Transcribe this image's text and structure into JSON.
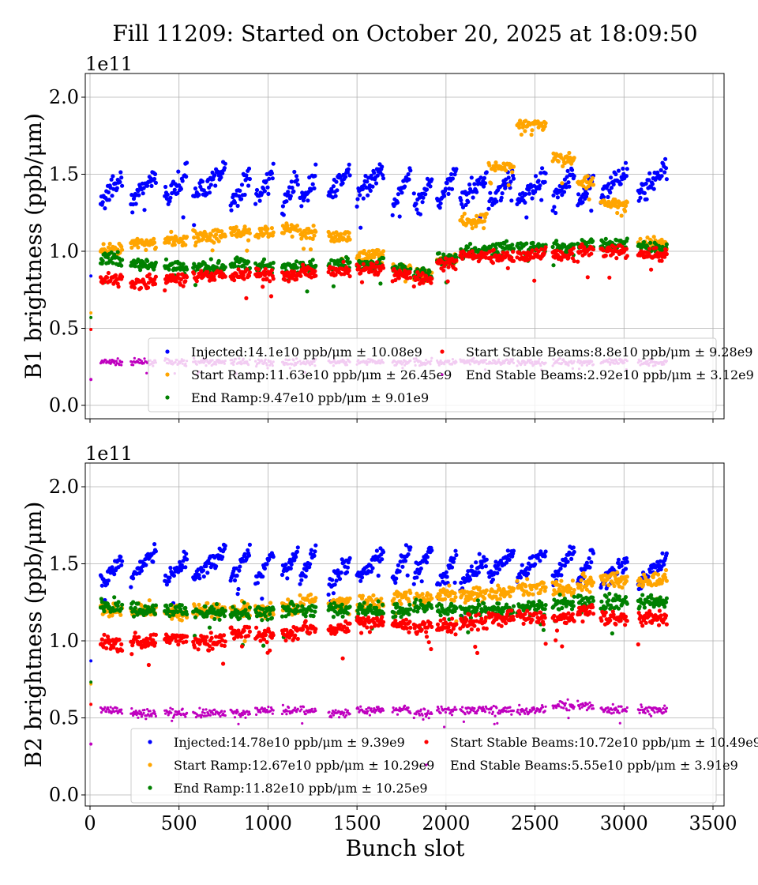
{
  "title": "Fill 11209: Started on October 20, 2025 at 18:09:50",
  "chart_data": [
    {
      "type": "scatter",
      "ylabel": "B1 brightness (ppb/μm)",
      "offset_text": "1e11",
      "xlim": [
        0,
        3500
      ],
      "ylim": [
        -0.05,
        2.15
      ],
      "xticks": [
        "0",
        "500",
        "1000",
        "1500",
        "2000",
        "2500",
        "3000",
        "3500"
      ],
      "yticks": [
        "0.0",
        "0.5",
        "1.0",
        "1.5",
        "2.0"
      ],
      "grid": true,
      "legend_placement": "lower-right",
      "trains": [
        [
          60,
          180
        ],
        [
          230,
          370
        ],
        [
          420,
          545
        ],
        [
          580,
          760
        ],
        [
          790,
          900
        ],
        [
          930,
          1030
        ],
        [
          1080,
          1170
        ],
        [
          1180,
          1270
        ],
        [
          1340,
          1460
        ],
        [
          1500,
          1650
        ],
        [
          1700,
          1800
        ],
        [
          1820,
          1920
        ],
        [
          1950,
          2060
        ],
        [
          2080,
          2230
        ],
        [
          2240,
          2380
        ],
        [
          2400,
          2560
        ],
        [
          2600,
          2720
        ],
        [
          2740,
          2830
        ],
        [
          2870,
          3020
        ],
        [
          3080,
          3240
        ]
      ],
      "series": [
        {
          "name": "End Stable Beams",
          "legend": "End Stable Beams:2.92e10 ppb/μm ± 3.12e9",
          "color": "#bf00bf",
          "train_means": [
            0.28,
            0.28,
            0.28,
            0.28,
            0.28,
            0.28,
            0.28,
            0.28,
            0.28,
            0.28,
            0.28,
            0.28,
            0.28,
            0.28,
            0.28,
            0.28,
            0.28,
            0.28,
            0.28,
            0.28
          ],
          "spread": 0.03
        },
        {
          "name": "Injected",
          "legend": "Injected:14.1e10 ppb/μm ± 10.08e9",
          "color": "#0000ff",
          "train_means": [
            1.4,
            1.42,
            1.42,
            1.45,
            1.4,
            1.42,
            1.38,
            1.4,
            1.45,
            1.45,
            1.4,
            1.38,
            1.42,
            1.4,
            1.4,
            1.4,
            1.42,
            1.4,
            1.45,
            1.45
          ],
          "spread": 0.1
        },
        {
          "name": "Start Ramp",
          "legend": "Start Ramp:11.63e10 ppb/μm ± 26.45e9",
          "color": "#ffa500",
          "train_means": [
            1.0,
            1.05,
            1.08,
            1.1,
            1.12,
            1.12,
            1.15,
            1.12,
            1.1,
            0.98,
            0.88,
            0.85,
            0.95,
            1.2,
            1.55,
            1.82,
            1.6,
            1.45,
            1.3,
            1.05
          ],
          "spread": 0.06
        },
        {
          "name": "End Ramp",
          "legend": "End Ramp:9.47e10 ppb/μm ± 9.01e9",
          "color": "#008000",
          "train_means": [
            0.95,
            0.92,
            0.9,
            0.9,
            0.92,
            0.9,
            0.9,
            0.9,
            0.92,
            0.92,
            0.88,
            0.85,
            0.95,
            1.0,
            1.02,
            1.02,
            1.02,
            1.05,
            1.05,
            1.02
          ],
          "spread": 0.06
        },
        {
          "name": "Start Stable Beams",
          "legend": "Start Stable Beams:8.8e10 ppb/μm ± 9.28e9",
          "color": "#ff0000",
          "train_means": [
            0.82,
            0.8,
            0.82,
            0.85,
            0.85,
            0.85,
            0.85,
            0.87,
            0.88,
            0.88,
            0.85,
            0.82,
            0.92,
            0.97,
            0.97,
            0.98,
            0.98,
            1.0,
            1.0,
            0.98
          ],
          "spread": 0.06
        }
      ]
    },
    {
      "type": "scatter",
      "ylabel": "B2 brightness (ppb/μm)",
      "xlabel": "Bunch slot",
      "offset_text": "1e11",
      "xlim": [
        0,
        3500
      ],
      "ylim": [
        -0.05,
        2.15
      ],
      "xticks": [
        "0",
        "500",
        "1000",
        "1500",
        "2000",
        "2500",
        "3000",
        "3500"
      ],
      "yticks": [
        "0.0",
        "0.5",
        "1.0",
        "1.5",
        "2.0"
      ],
      "grid": true,
      "legend_placement": "lower-right",
      "trains": [
        [
          60,
          180
        ],
        [
          230,
          370
        ],
        [
          420,
          545
        ],
        [
          580,
          760
        ],
        [
          790,
          900
        ],
        [
          930,
          1030
        ],
        [
          1080,
          1170
        ],
        [
          1180,
          1270
        ],
        [
          1340,
          1460
        ],
        [
          1500,
          1650
        ],
        [
          1700,
          1800
        ],
        [
          1820,
          1920
        ],
        [
          1950,
          2060
        ],
        [
          2080,
          2230
        ],
        [
          2240,
          2380
        ],
        [
          2400,
          2560
        ],
        [
          2600,
          2720
        ],
        [
          2740,
          2830
        ],
        [
          2870,
          3020
        ],
        [
          3080,
          3240
        ]
      ],
      "series": [
        {
          "name": "End Stable Beams",
          "legend": "End Stable Beams:5.55e10 ppb/μm ± 3.91e9",
          "color": "#bf00bf",
          "train_means": [
            0.55,
            0.53,
            0.53,
            0.53,
            0.53,
            0.55,
            0.55,
            0.55,
            0.53,
            0.55,
            0.55,
            0.53,
            0.55,
            0.55,
            0.55,
            0.55,
            0.58,
            0.58,
            0.55,
            0.55
          ],
          "spread": 0.04
        },
        {
          "name": "Injected",
          "legend": "Injected:14.78e10 ppb/μm ± 9.39e9",
          "color": "#0000ff",
          "train_means": [
            1.45,
            1.5,
            1.45,
            1.5,
            1.5,
            1.48,
            1.5,
            1.5,
            1.45,
            1.5,
            1.5,
            1.5,
            1.45,
            1.45,
            1.5,
            1.5,
            1.5,
            1.48,
            1.45,
            1.45
          ],
          "spread": 0.08
        },
        {
          "name": "Start Ramp",
          "legend": "Start Ramp:12.67e10 ppb/μm ± 10.29e9",
          "color": "#ffa500",
          "train_means": [
            1.2,
            1.2,
            1.18,
            1.2,
            1.2,
            1.2,
            1.22,
            1.25,
            1.25,
            1.25,
            1.28,
            1.28,
            1.3,
            1.3,
            1.32,
            1.35,
            1.35,
            1.38,
            1.4,
            1.4
          ],
          "spread": 0.07
        },
        {
          "name": "End Ramp",
          "legend": "End Ramp:11.82e10 ppb/μm ± 10.25e9",
          "color": "#008000",
          "train_means": [
            1.22,
            1.2,
            1.2,
            1.18,
            1.18,
            1.18,
            1.2,
            1.2,
            1.2,
            1.2,
            1.2,
            1.22,
            1.2,
            1.2,
            1.2,
            1.22,
            1.25,
            1.25,
            1.25,
            1.25
          ],
          "spread": 0.07
        },
        {
          "name": "Start Stable Beams",
          "legend": "Start Stable Beams:10.72e10 ppb/μm ± 10.49e9",
          "color": "#ff0000",
          "train_means": [
            0.98,
            1.0,
            1.02,
            1.0,
            1.05,
            1.05,
            1.05,
            1.08,
            1.08,
            1.12,
            1.1,
            1.08,
            1.1,
            1.12,
            1.15,
            1.15,
            1.15,
            1.2,
            1.15,
            1.15
          ],
          "spread": 0.07
        }
      ]
    }
  ]
}
